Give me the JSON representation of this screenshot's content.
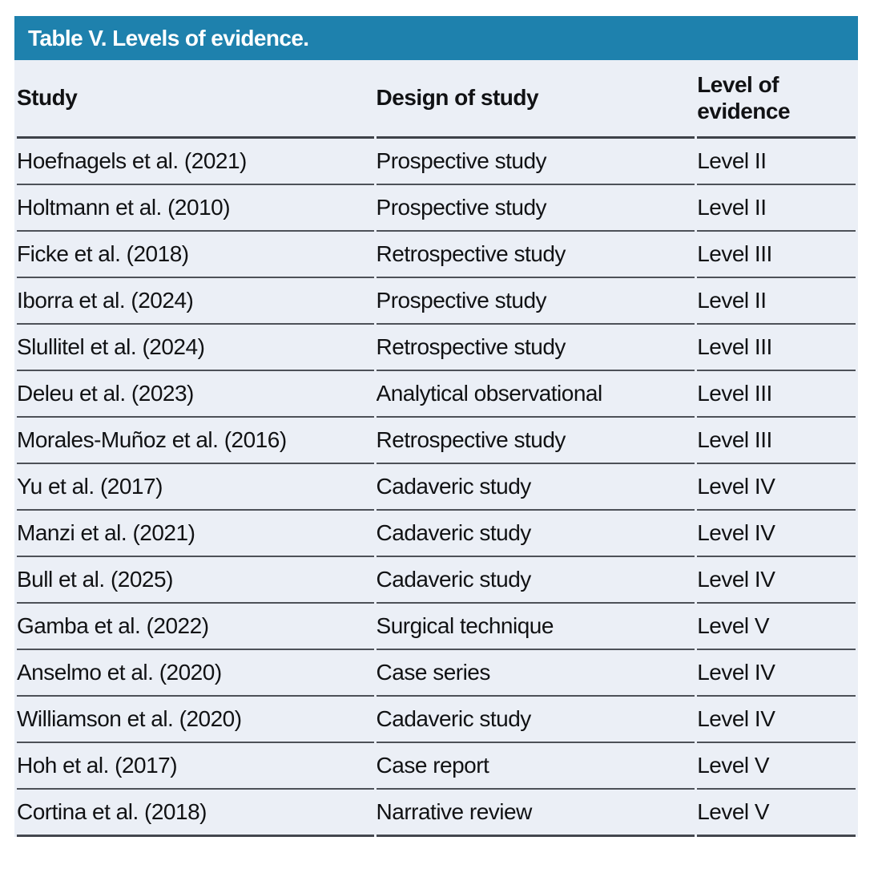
{
  "table": {
    "title": "Table V. Levels of evidence.",
    "columns": [
      "Study",
      "Design of study",
      "Level of evidence"
    ],
    "rows": [
      {
        "study": "Hoefnagels et al. (2021)",
        "design": "Prospective study",
        "level": "Level II"
      },
      {
        "study": "Holtmann et al. (2010)",
        "design": "Prospective study",
        "level": "Level II"
      },
      {
        "study": "Ficke et al. (2018)",
        "design": "Retrospective study",
        "level": "Level III"
      },
      {
        "study": "Iborra et al. (2024)",
        "design": "Prospective study",
        "level": "Level II"
      },
      {
        "study": "Slullitel et al. (2024)",
        "design": "Retrospective study",
        "level": "Level III"
      },
      {
        "study": "Deleu et al. (2023)",
        "design": "Analytical observational",
        "level": "Level III"
      },
      {
        "study": "Morales-Muñoz et al. (2016)",
        "design": "Retrospective study",
        "level": "Level III"
      },
      {
        "study": "Yu et al. (2017)",
        "design": "Cadaveric study",
        "level": "Level IV"
      },
      {
        "study": "Manzi et al. (2021)",
        "design": "Cadaveric study",
        "level": "Level IV"
      },
      {
        "study": "Bull et al. (2025)",
        "design": "Cadaveric study",
        "level": "Level IV"
      },
      {
        "study": "Gamba et al. (2022)",
        "design": "Surgical technique",
        "level": "Level V"
      },
      {
        "study": "Anselmo et al. (2020)",
        "design": "Case series",
        "level": "Level IV"
      },
      {
        "study": "Williamson et al. (2020)",
        "design": "Cadaveric study",
        "level": "Level IV"
      },
      {
        "study": "Hoh et al. (2017)",
        "design": "Case report",
        "level": "Level V"
      },
      {
        "study": "Cortina et al. (2018)",
        "design": "Narrative review",
        "level": "Level V"
      }
    ]
  },
  "colors": {
    "title_band_bg": "#1e81ad",
    "title_text": "#ffffff",
    "row_bg": "#ebeff6",
    "separator_line": "#4d5158",
    "header_line": "#3d4249",
    "body_text": "#111214"
  }
}
